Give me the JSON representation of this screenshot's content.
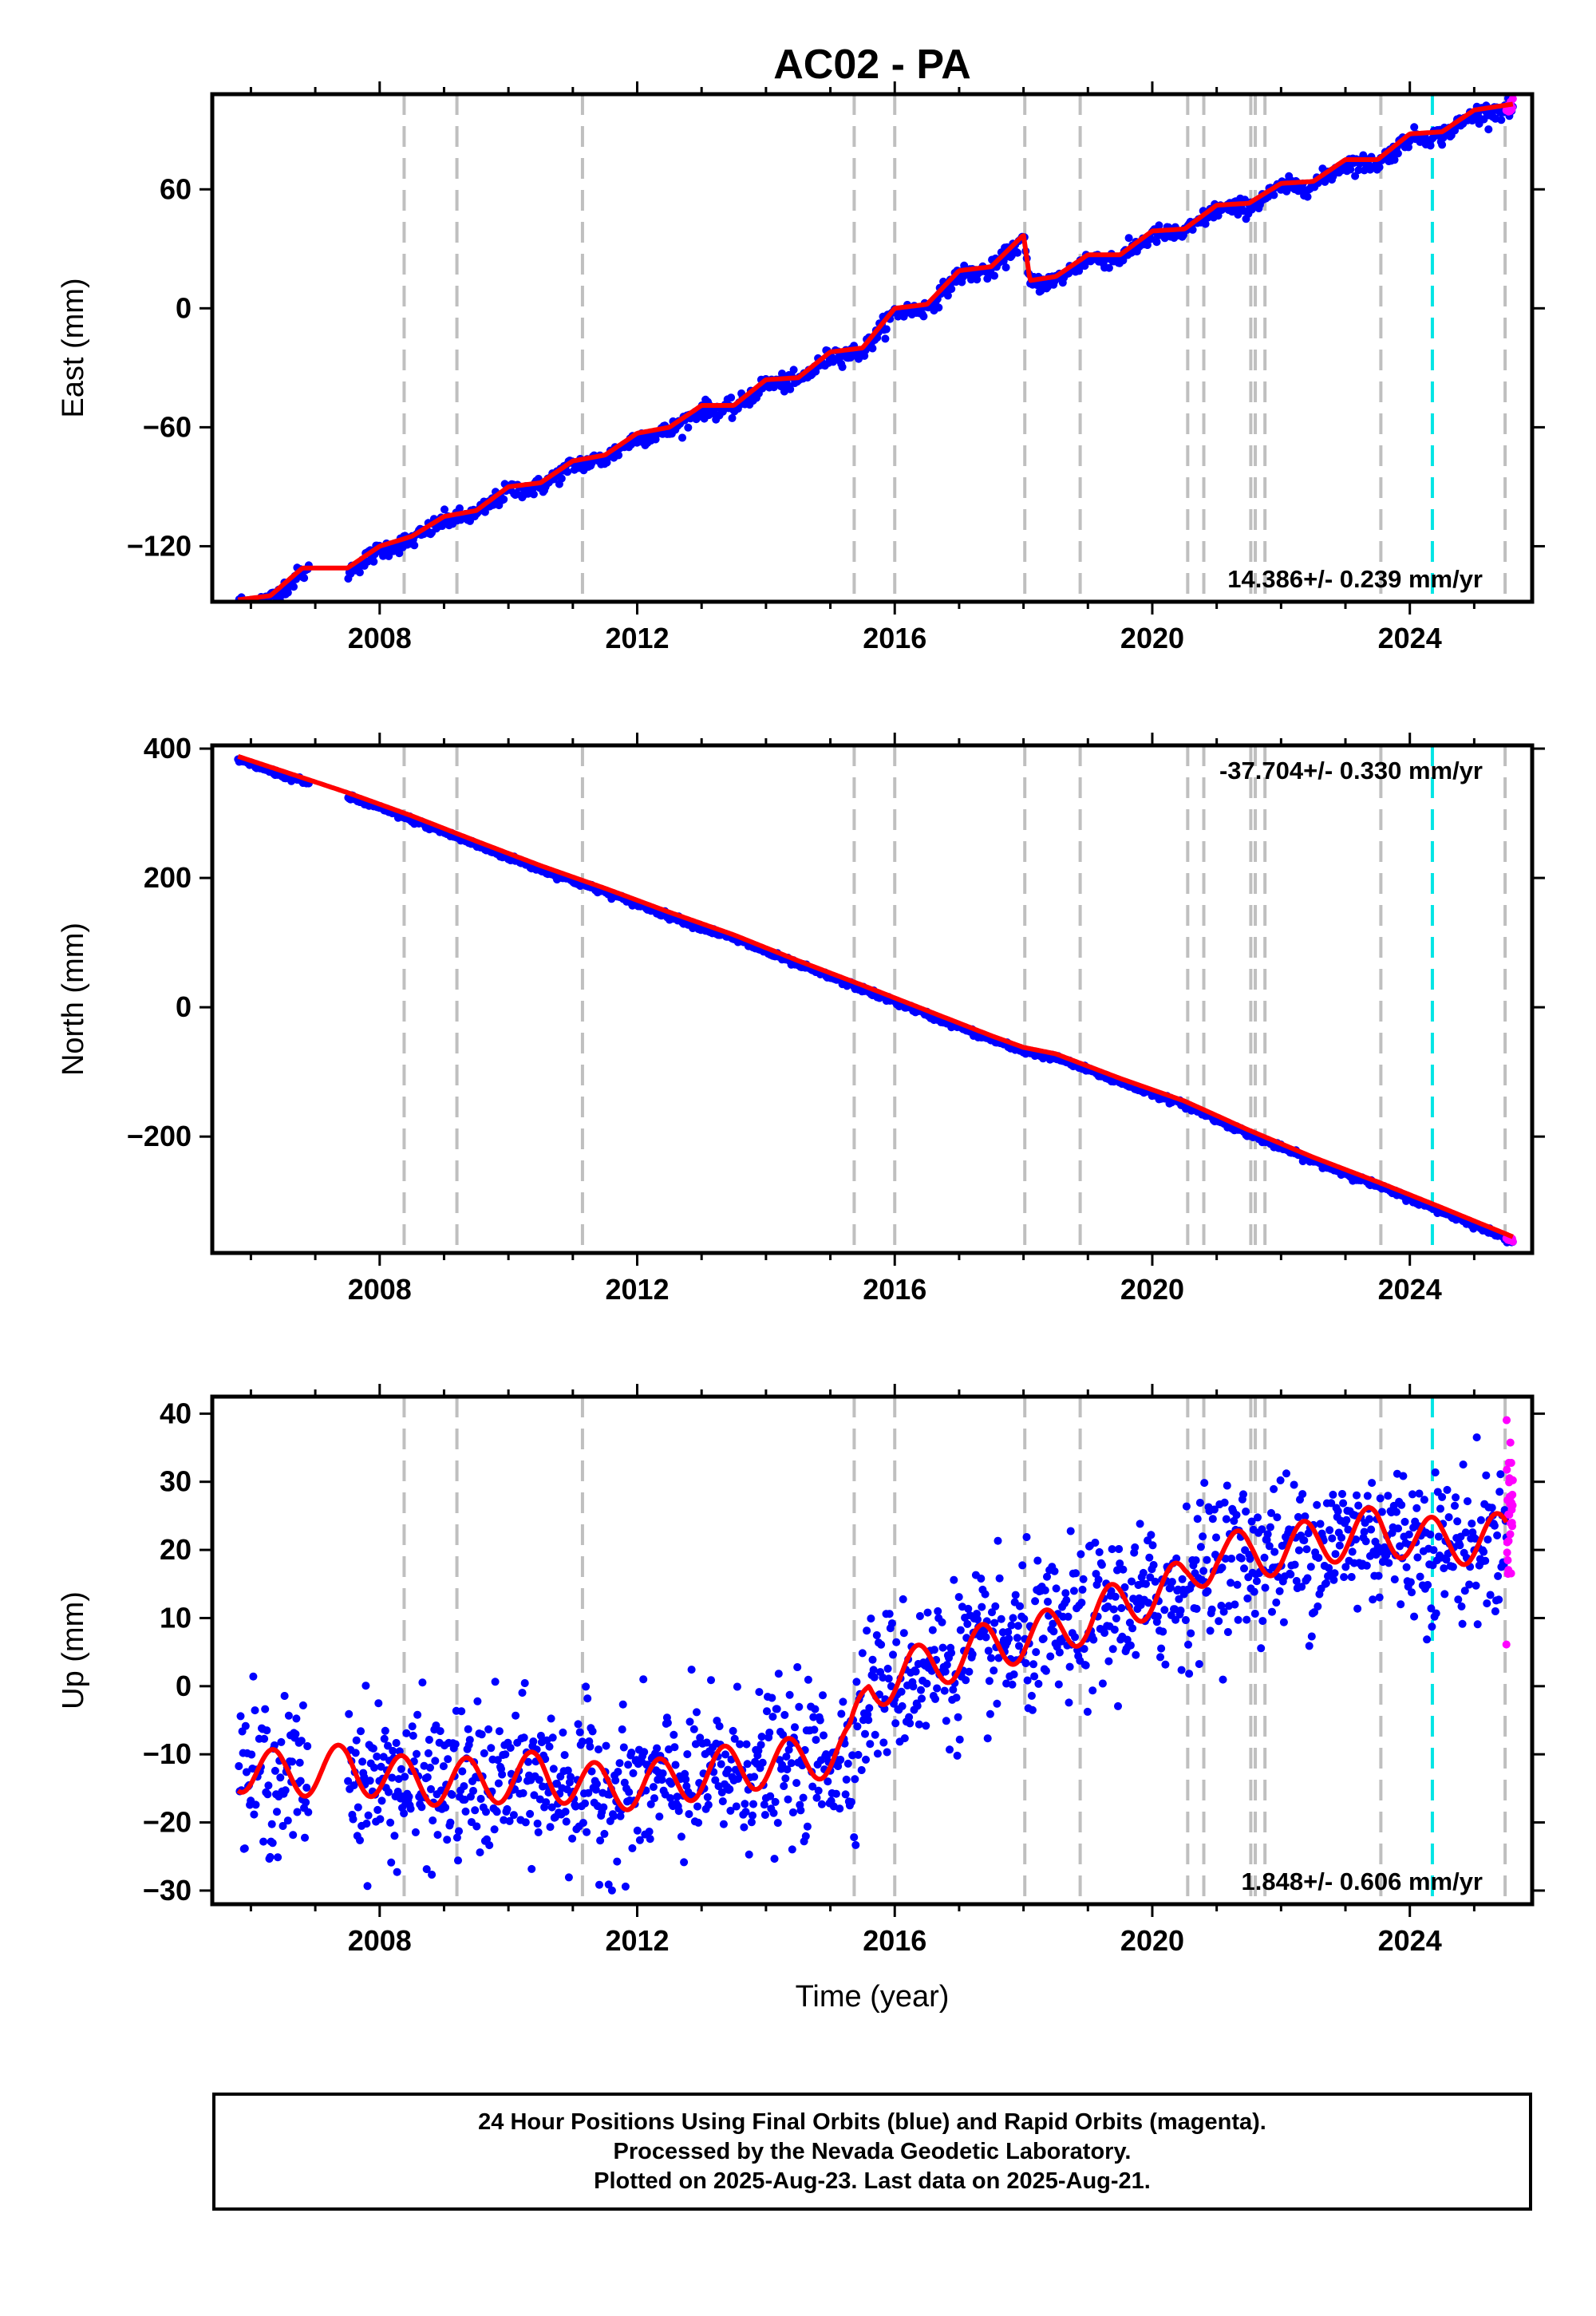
{
  "figure": {
    "title": "AC02 - PA"
  },
  "colors": {
    "final_orbits": "#0000ff",
    "rapid_orbits": "#ff00ff",
    "model_fit": "#ff0000",
    "equipment_change": "#bfbfbf",
    "earthquake": "#00e5e5",
    "frame": "#000000"
  },
  "event_lines": {
    "gray_years": [
      2008.38,
      2009.2,
      2011.15,
      2015.37,
      2016.0,
      2018.02,
      2018.88,
      2020.55,
      2020.8,
      2021.53,
      2021.6,
      2021.75,
      2023.55,
      2025.48
    ],
    "cyan_years": [
      2024.35
    ]
  },
  "chart_data": [
    {
      "type": "scatter",
      "component": "east",
      "title": "",
      "xlabel": "",
      "ylabel": "East (mm)",
      "xlim": [
        2005.4,
        2025.9
      ],
      "ylim": [
        -148,
        108
      ],
      "yticks": [
        -120,
        -60,
        0,
        60
      ],
      "xticks": [
        2008,
        2012,
        2016,
        2020,
        2024
      ],
      "rate_label": "14.386+/- 0.239 mm/yr",
      "rate_label_position": "bottom-right",
      "grid": false,
      "series": [
        {
          "x": [
            2005.8,
            2006.3,
            2006.8,
            2007.5,
            2008.0,
            2008.5,
            2009.0,
            2009.5,
            2010.0,
            2010.5,
            2011.0,
            2011.5,
            2012.0,
            2012.5,
            2013.0,
            2013.5,
            2014.0,
            2014.5,
            2015.0,
            2015.5,
            2016.0,
            2016.5,
            2017.0,
            2017.5,
            2018.0,
            2018.1,
            2018.5,
            2019.0,
            2019.5,
            2020.0,
            2020.5,
            2021.0,
            2021.5,
            2022.0,
            2022.5,
            2023.0,
            2023.5,
            2024.0,
            2024.5,
            2025.0,
            2025.6
          ],
          "y": [
            -147,
            -145,
            -131,
            -131,
            -120,
            -115,
            -105,
            -102,
            -90,
            -88,
            -77,
            -74,
            -63,
            -60,
            -49,
            -49,
            -36,
            -35,
            -22,
            -20,
            0,
            2,
            19,
            21,
            37,
            14,
            16,
            27,
            27,
            39,
            40,
            52,
            53,
            63,
            64,
            75,
            75,
            88,
            89,
            100,
            103
          ]
        }
      ]
    },
    {
      "type": "scatter",
      "component": "north",
      "title": "",
      "xlabel": "",
      "ylabel": "North (mm)",
      "xlim": [
        2005.4,
        2025.9
      ],
      "ylim": [
        -380,
        405
      ],
      "yticks": [
        -200,
        0,
        200,
        400
      ],
      "xticks": [
        2008,
        2012,
        2016,
        2020,
        2024
      ],
      "rate_label": "-37.704+/- 0.330 mm/yr",
      "rate_label_position": "top-right",
      "grid": false,
      "series": [
        {
          "x": [
            2005.8,
            2006.5,
            2007.5,
            2008.5,
            2009.5,
            2010.5,
            2011.5,
            2012.5,
            2013.5,
            2014.5,
            2015.5,
            2016.5,
            2017.5,
            2018.0,
            2018.5,
            2019.5,
            2020.5,
            2021.5,
            2022.5,
            2023.5,
            2024.5,
            2025.6
          ],
          "y": [
            388,
            365,
            332,
            296,
            257,
            219,
            184,
            147,
            112,
            72,
            34,
            -5,
            -44,
            -62,
            -72,
            -110,
            -145,
            -190,
            -232,
            -270,
            -310,
            -355
          ]
        }
      ]
    },
    {
      "type": "scatter",
      "component": "up",
      "title": "",
      "xlabel": "Time (year)",
      "ylabel": "Up (mm)",
      "xlim": [
        2005.4,
        2025.9
      ],
      "ylim": [
        -32,
        42.5
      ],
      "yticks": [
        -30,
        -20,
        -10,
        0,
        10,
        20,
        30,
        40
      ],
      "xticks": [
        2008,
        2012,
        2016,
        2020,
        2024
      ],
      "rate_label": "1.848+/- 0.606 mm/yr",
      "rate_label_position": "bottom-right",
      "grid": false,
      "series": [
        {
          "x": [
            2005.8,
            2006.5,
            2007.5,
            2008.5,
            2009.5,
            2010.5,
            2011.5,
            2012.5,
            2013.5,
            2014.5,
            2015.3,
            2015.6,
            2016.5,
            2017.5,
            2018.5,
            2019.5,
            2020.5,
            2021.0,
            2021.5,
            2022.5,
            2023.5,
            2024.5,
            2025.5
          ],
          "y": [
            -12,
            -13,
            -12,
            -14,
            -14,
            -13,
            -15,
            -14,
            -12,
            -11,
            -9,
            0,
            3,
            6,
            8,
            12,
            15,
            20,
            19,
            21,
            23,
            21,
            22
          ]
        }
      ]
    }
  ],
  "footer": {
    "line1": "24 Hour Positions Using Final Orbits (blue) and Rapid Orbits (magenta).",
    "line2": "Processed by the Nevada Geodetic Laboratory.",
    "line3": "Plotted on 2025-Aug-23. Last data on 2025-Aug-21."
  }
}
